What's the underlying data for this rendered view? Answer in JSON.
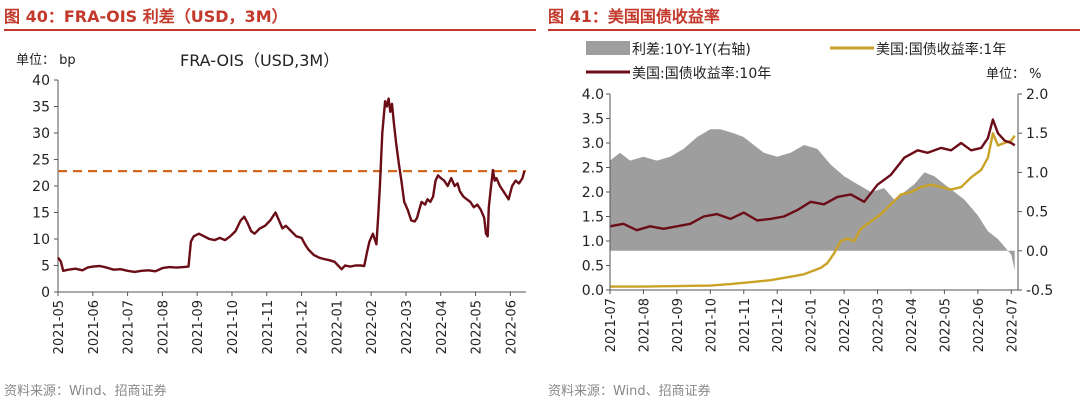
{
  "left_panel": {
    "title": "图 40：FRA-OIS 利差（USD，3M）",
    "unit_label": "单位： bp",
    "chart_inner_title": "FRA-OIS（USD,3M）",
    "source": "资料来源：Wind、招商证券"
  },
  "right_panel": {
    "title": "图 41：美国国债收益率",
    "unit_label": "单位： %",
    "source": "资料来源：Wind、招商证券"
  },
  "colors": {
    "accent_red": "#c3392b",
    "fra_line": "#6b0d16",
    "ref_line": "#d2691e",
    "ust10_line": "#6b0d16",
    "ust1_line": "#c9a227",
    "spread_area": "#9e9e9e"
  },
  "chart_data": [
    {
      "type": "line",
      "title": "FRA-OIS（USD,3M）",
      "ylim": [
        0,
        40
      ],
      "yticks": [
        0,
        5,
        10,
        15,
        20,
        25,
        30,
        35,
        40
      ],
      "xlabels": [
        "2021-05",
        "2021-06",
        "2021-07",
        "2021-08",
        "2021-09",
        "2021-10",
        "2021-11",
        "2021-12",
        "2022-01",
        "2022-02",
        "2022-03",
        "2022-04",
        "2022-05",
        "2022-06"
      ],
      "reference_line": 22.8,
      "series": [
        {
          "values": [
            [
              0,
              6.5
            ],
            [
              0.08,
              5.8
            ],
            [
              0.15,
              4
            ],
            [
              0.3,
              4.2
            ],
            [
              0.5,
              4.4
            ],
            [
              0.7,
              4.1
            ],
            [
              0.85,
              4.6
            ],
            [
              1.0,
              4.8
            ],
            [
              1.2,
              4.9
            ],
            [
              1.4,
              4.6
            ],
            [
              1.6,
              4.2
            ],
            [
              1.8,
              4.3
            ],
            [
              2.0,
              4.0
            ],
            [
              2.2,
              3.8
            ],
            [
              2.4,
              4.0
            ],
            [
              2.6,
              4.1
            ],
            [
              2.8,
              3.9
            ],
            [
              3.0,
              4.5
            ],
            [
              3.2,
              4.7
            ],
            [
              3.4,
              4.6
            ],
            [
              3.6,
              4.7
            ],
            [
              3.75,
              4.8
            ],
            [
              3.82,
              9.5
            ],
            [
              3.9,
              10.5
            ],
            [
              4.05,
              11
            ],
            [
              4.2,
              10.5
            ],
            [
              4.35,
              10
            ],
            [
              4.5,
              9.8
            ],
            [
              4.65,
              10.2
            ],
            [
              4.8,
              9.8
            ],
            [
              4.95,
              10.5
            ],
            [
              5.1,
              11.5
            ],
            [
              5.25,
              13.5
            ],
            [
              5.35,
              14.2
            ],
            [
              5.45,
              13
            ],
            [
              5.55,
              11.5
            ],
            [
              5.65,
              11
            ],
            [
              5.8,
              12
            ],
            [
              5.95,
              12.5
            ],
            [
              6.1,
              13.5
            ],
            [
              6.2,
              14.5
            ],
            [
              6.25,
              15
            ],
            [
              6.35,
              13.5
            ],
            [
              6.45,
              12
            ],
            [
              6.55,
              12.5
            ],
            [
              6.7,
              11.5
            ],
            [
              6.85,
              10.5
            ],
            [
              7.0,
              10.2
            ],
            [
              7.1,
              9
            ],
            [
              7.2,
              8
            ],
            [
              7.35,
              7
            ],
            [
              7.5,
              6.5
            ],
            [
              7.65,
              6.2
            ],
            [
              7.8,
              6
            ],
            [
              7.95,
              5.7
            ],
            [
              8.05,
              5
            ],
            [
              8.15,
              4.3
            ],
            [
              8.25,
              5
            ],
            [
              8.4,
              4.8
            ],
            [
              8.55,
              5
            ],
            [
              8.7,
              5
            ],
            [
              8.8,
              4.9
            ],
            [
              8.88,
              7.5
            ],
            [
              8.95,
              9.5
            ],
            [
              9.05,
              11
            ],
            [
              9.15,
              9
            ],
            [
              9.2,
              14
            ],
            [
              9.25,
              20
            ],
            [
              9.32,
              30
            ],
            [
              9.4,
              36
            ],
            [
              9.45,
              35
            ],
            [
              9.5,
              36.5
            ],
            [
              9.55,
              34
            ],
            [
              9.6,
              35.5
            ],
            [
              9.65,
              32
            ],
            [
              9.72,
              28
            ],
            [
              9.8,
              24
            ],
            [
              9.87,
              21
            ],
            [
              9.95,
              17
            ],
            [
              10.05,
              15.5
            ],
            [
              10.15,
              13.5
            ],
            [
              10.25,
              13.3
            ],
            [
              10.32,
              14
            ],
            [
              10.38,
              15.5
            ],
            [
              10.45,
              17
            ],
            [
              10.55,
              16.5
            ],
            [
              10.62,
              17.5
            ],
            [
              10.7,
              17
            ],
            [
              10.78,
              18
            ],
            [
              10.85,
              21
            ],
            [
              10.92,
              22
            ],
            [
              11.0,
              21.5
            ],
            [
              11.1,
              21
            ],
            [
              11.2,
              20
            ],
            [
              11.3,
              21.5
            ],
            [
              11.4,
              20
            ],
            [
              11.48,
              20.5
            ],
            [
              11.55,
              19
            ],
            [
              11.65,
              18
            ],
            [
              11.75,
              17.5
            ],
            [
              11.85,
              17
            ],
            [
              11.95,
              16
            ],
            [
              12.05,
              16.5
            ],
            [
              12.15,
              15.5
            ],
            [
              12.25,
              14
            ],
            [
              12.3,
              11
            ],
            [
              12.35,
              10.5
            ],
            [
              12.38,
              16
            ],
            [
              12.43,
              19
            ],
            [
              12.5,
              23
            ],
            [
              12.55,
              21
            ],
            [
              12.6,
              21.5
            ],
            [
              12.7,
              20
            ],
            [
              12.8,
              19
            ],
            [
              12.9,
              18
            ],
            [
              12.95,
              17.5
            ],
            [
              13.05,
              20
            ],
            [
              13.15,
              21
            ],
            [
              13.25,
              20.5
            ],
            [
              13.35,
              21.5
            ],
            [
              13.4,
              22.8
            ]
          ]
        }
      ]
    },
    {
      "type": "line",
      "title": "",
      "ylim_left": [
        0,
        4
      ],
      "yticks_left": [
        0.0,
        0.5,
        1.0,
        1.5,
        2.0,
        2.5,
        3.0,
        3.5,
        4.0
      ],
      "ylim_right": [
        -0.5,
        2.0
      ],
      "yticks_right": [
        -0.5,
        0.0,
        0.5,
        1.0,
        1.5,
        2.0
      ],
      "xlabels": [
        "2021-07",
        "2021-08",
        "2021-09",
        "2021-10",
        "2021-11",
        "2021-12",
        "2022-01",
        "2022-02",
        "2022-03",
        "2022-04",
        "2022-05",
        "2022-06",
        "2022-07"
      ],
      "series": [
        {
          "name": "利差:10Y-1Y(右轴)",
          "type": "area",
          "axis": "right",
          "values": [
            [
              0,
              1.15
            ],
            [
              0.3,
              1.25
            ],
            [
              0.6,
              1.15
            ],
            [
              1.0,
              1.2
            ],
            [
              1.4,
              1.15
            ],
            [
              1.8,
              1.2
            ],
            [
              2.2,
              1.3
            ],
            [
              2.6,
              1.45
            ],
            [
              3.0,
              1.55
            ],
            [
              3.3,
              1.55
            ],
            [
              3.7,
              1.5
            ],
            [
              4.0,
              1.45
            ],
            [
              4.3,
              1.35
            ],
            [
              4.6,
              1.25
            ],
            [
              5.0,
              1.2
            ],
            [
              5.4,
              1.25
            ],
            [
              5.8,
              1.35
            ],
            [
              6.2,
              1.3
            ],
            [
              6.6,
              1.1
            ],
            [
              7.0,
              0.95
            ],
            [
              7.4,
              0.85
            ],
            [
              7.8,
              0.75
            ],
            [
              8.2,
              0.8
            ],
            [
              8.5,
              0.65
            ],
            [
              8.8,
              0.75
            ],
            [
              9.1,
              0.85
            ],
            [
              9.4,
              1.0
            ],
            [
              9.7,
              0.95
            ],
            [
              10.0,
              0.85
            ],
            [
              10.3,
              0.75
            ],
            [
              10.6,
              0.65
            ],
            [
              11.0,
              0.45
            ],
            [
              11.3,
              0.25
            ],
            [
              11.6,
              0.15
            ],
            [
              11.8,
              0.05
            ],
            [
              12.0,
              -0.05
            ],
            [
              12.1,
              -0.25
            ]
          ]
        },
        {
          "name": "美国:国债收益率:1年",
          "axis": "left",
          "values": [
            [
              0,
              0.07
            ],
            [
              1.0,
              0.07
            ],
            [
              2.0,
              0.08
            ],
            [
              3.0,
              0.09
            ],
            [
              3.6,
              0.12
            ],
            [
              4.2,
              0.16
            ],
            [
              4.8,
              0.2
            ],
            [
              5.3,
              0.26
            ],
            [
              5.8,
              0.32
            ],
            [
              6.3,
              0.45
            ],
            [
              6.5,
              0.55
            ],
            [
              6.7,
              0.75
            ],
            [
              6.9,
              1.0
            ],
            [
              7.1,
              1.05
            ],
            [
              7.3,
              1.0
            ],
            [
              7.5,
              1.25
            ],
            [
              7.8,
              1.4
            ],
            [
              8.1,
              1.55
            ],
            [
              8.4,
              1.75
            ],
            [
              8.7,
              1.95
            ],
            [
              9.0,
              2.0
            ],
            [
              9.3,
              2.1
            ],
            [
              9.6,
              2.15
            ],
            [
              9.9,
              2.1
            ],
            [
              10.2,
              2.05
            ],
            [
              10.5,
              2.1
            ],
            [
              10.8,
              2.3
            ],
            [
              11.1,
              2.45
            ],
            [
              11.3,
              2.7
            ],
            [
              11.45,
              3.2
            ],
            [
              11.6,
              2.95
            ],
            [
              11.8,
              3.0
            ],
            [
              12.0,
              3.05
            ],
            [
              12.1,
              3.15
            ]
          ]
        },
        {
          "name": "美国:国债收益率:10年",
          "axis": "left",
          "values": [
            [
              0,
              1.3
            ],
            [
              0.4,
              1.35
            ],
            [
              0.8,
              1.22
            ],
            [
              1.2,
              1.3
            ],
            [
              1.6,
              1.25
            ],
            [
              2.0,
              1.3
            ],
            [
              2.4,
              1.35
            ],
            [
              2.8,
              1.5
            ],
            [
              3.2,
              1.55
            ],
            [
              3.6,
              1.45
            ],
            [
              4.0,
              1.58
            ],
            [
              4.4,
              1.42
            ],
            [
              4.8,
              1.45
            ],
            [
              5.2,
              1.5
            ],
            [
              5.6,
              1.63
            ],
            [
              6.0,
              1.8
            ],
            [
              6.4,
              1.75
            ],
            [
              6.8,
              1.9
            ],
            [
              7.2,
              1.95
            ],
            [
              7.6,
              1.8
            ],
            [
              8.0,
              2.15
            ],
            [
              8.4,
              2.35
            ],
            [
              8.8,
              2.7
            ],
            [
              9.2,
              2.85
            ],
            [
              9.5,
              2.8
            ],
            [
              9.9,
              2.9
            ],
            [
              10.2,
              2.85
            ],
            [
              10.5,
              3.0
            ],
            [
              10.8,
              2.85
            ],
            [
              11.1,
              2.9
            ],
            [
              11.3,
              3.1
            ],
            [
              11.45,
              3.48
            ],
            [
              11.6,
              3.2
            ],
            [
              11.8,
              3.05
            ],
            [
              12.0,
              3.0
            ],
            [
              12.1,
              2.95
            ]
          ]
        }
      ]
    }
  ]
}
